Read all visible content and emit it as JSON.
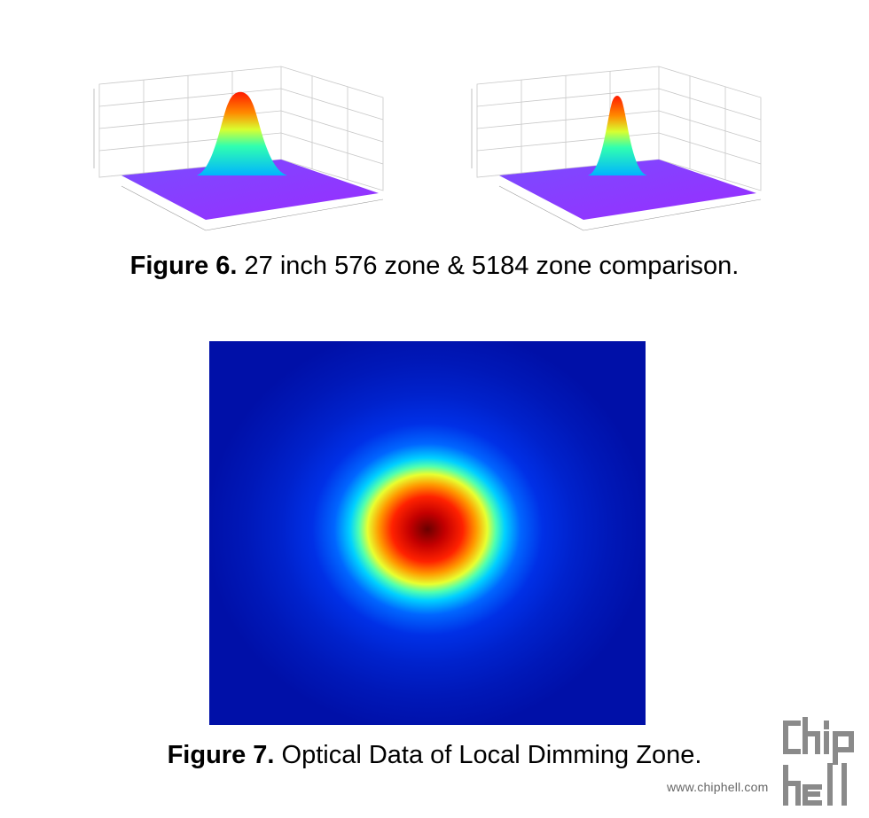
{
  "figure6": {
    "label": "Figure 6.",
    "text": " 27 inch 576 zone & 5184 zone comparison.",
    "plots": [
      {
        "zones": 576,
        "peak_width": "wide"
      },
      {
        "zones": 5184,
        "peak_width": "narrow"
      }
    ]
  },
  "figure7": {
    "label": "Figure 7.",
    "text": " Optical Data of Local Dimming Zone.",
    "colormap": "jet"
  },
  "watermark": {
    "url": "www.chiphell.com",
    "logo_text": "chip hell"
  },
  "colors": {
    "background": "#ffffff",
    "surface_base": "#8a3cff",
    "peak": "#ff2a00",
    "heatmap_base": "#0010b8"
  }
}
